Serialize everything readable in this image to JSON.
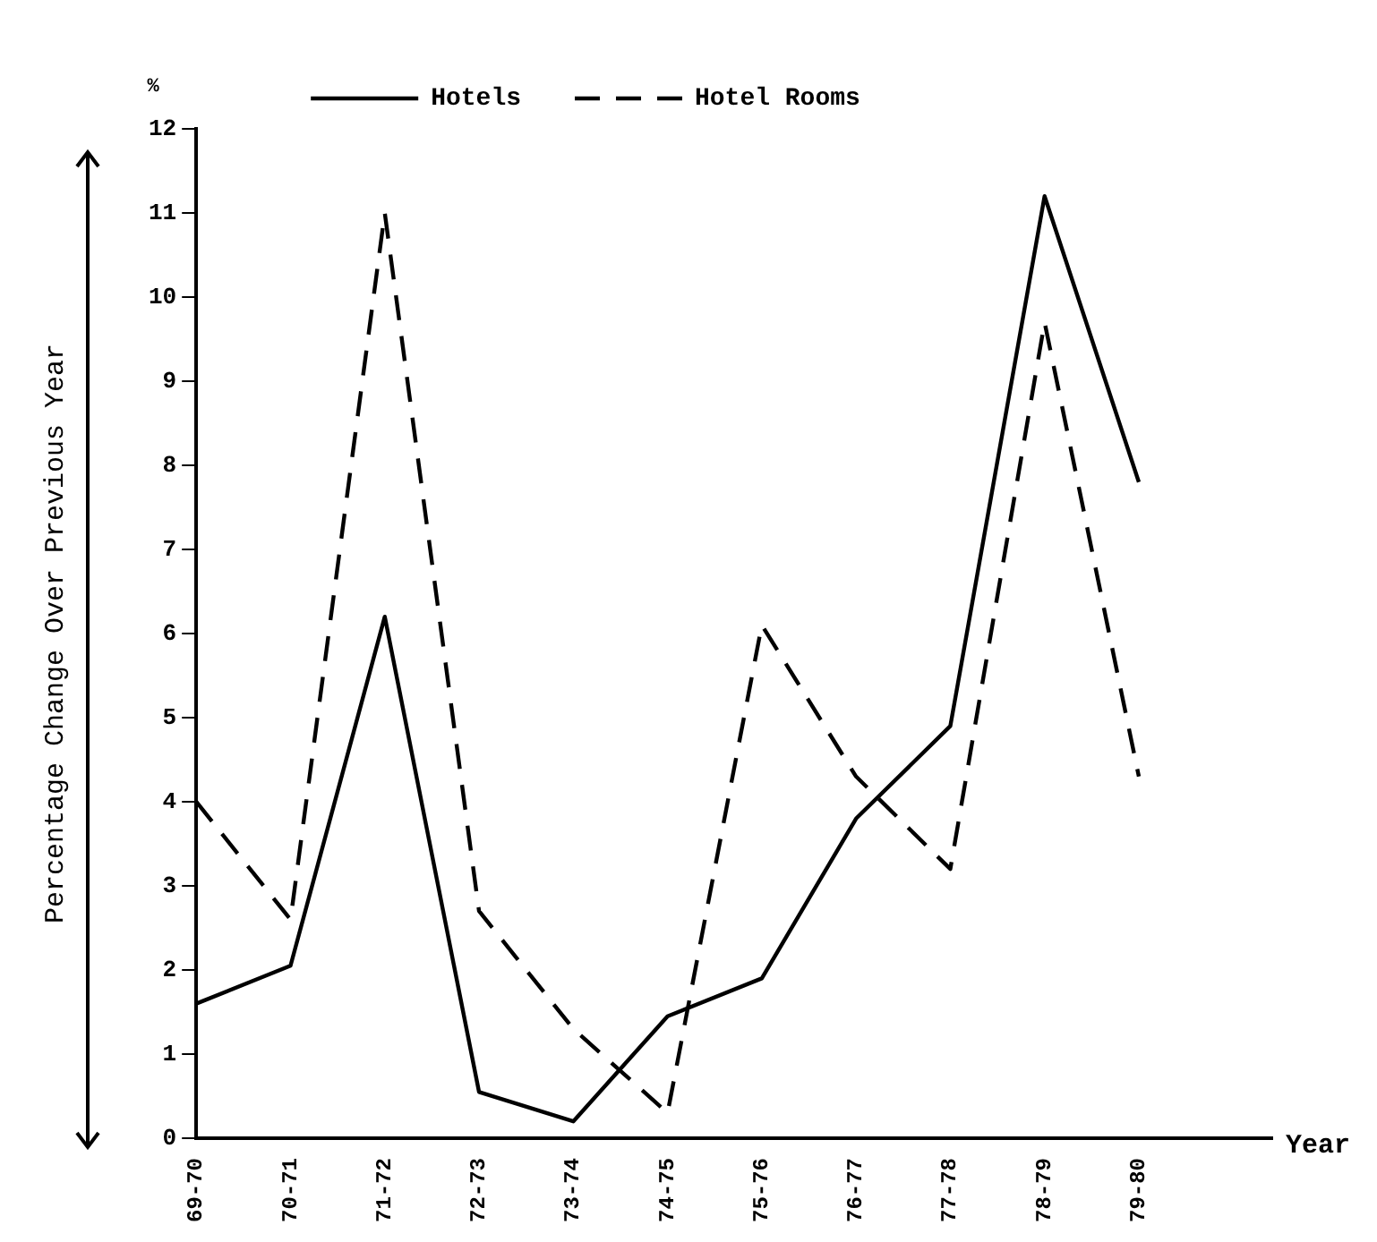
{
  "chart_data": {
    "type": "line",
    "xlabel": "Year",
    "ylabel": "Percentage Change Over Previous Year",
    "annotations": [
      "%"
    ],
    "categories": [
      "69-70",
      "70-71",
      "71-72",
      "72-73",
      "73-74",
      "74-75",
      "75-76",
      "76-77",
      "77-78",
      "78-79",
      "79-80"
    ],
    "series": [
      {
        "name": "Hotels",
        "color": "#000000",
        "line_style": "solid",
        "values": [
          1.6,
          2.05,
          6.2,
          0.55,
          0.2,
          1.45,
          1.9,
          3.8,
          4.9,
          11.2,
          7.8
        ]
      },
      {
        "name": "Hotel Rooms",
        "color": "#000000",
        "line_style": "dashed",
        "values": [
          4.0,
          2.6,
          11.0,
          2.7,
          1.3,
          0.3,
          6.1,
          4.3,
          3.2,
          9.7,
          4.3
        ]
      }
    ],
    "ylim": [
      0,
      12
    ],
    "yticks": [
      0,
      1,
      2,
      3,
      4,
      5,
      6,
      7,
      8,
      9,
      10,
      11,
      12
    ],
    "grid": false,
    "legend": "top",
    "marker": "none"
  }
}
